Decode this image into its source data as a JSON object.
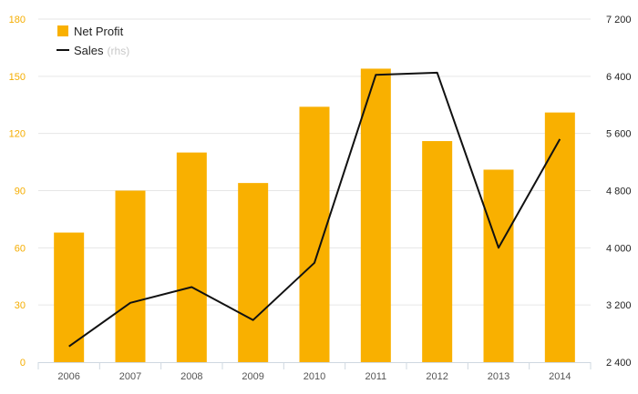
{
  "chart_data": {
    "type": "bar",
    "categories": [
      "2006",
      "2007",
      "2008",
      "2009",
      "2010",
      "2011",
      "2012",
      "2013",
      "2014"
    ],
    "series": [
      {
        "name": "Net Profit",
        "type": "bar",
        "axis": "left",
        "color": "#f9b000",
        "values": [
          68,
          90,
          110,
          94,
          134,
          154,
          116,
          101,
          131
        ]
      },
      {
        "name": "Sales",
        "type": "line",
        "axis": "right",
        "color": "#111111",
        "values": [
          2620,
          3230,
          3450,
          2990,
          3790,
          6420,
          6450,
          4000,
          5520
        ]
      }
    ],
    "y_left": {
      "ylim": [
        0,
        180
      ],
      "ticks": [
        0,
        30,
        60,
        90,
        120,
        150,
        180
      ],
      "tick_labels": [
        "0",
        "30",
        "60",
        "90",
        "120",
        "150",
        "180"
      ],
      "color": "#f5ad00"
    },
    "y_right": {
      "ylim": [
        2400,
        7200
      ],
      "ticks": [
        2400,
        3200,
        4000,
        4800,
        5600,
        6400,
        7200
      ],
      "tick_labels": [
        "2 400",
        "3 200",
        "4 000",
        "4 800",
        "5 600",
        "6 400",
        "7 200"
      ]
    },
    "legend": {
      "placement": "top-left",
      "items": [
        {
          "label": "Net Profit",
          "sub": ""
        },
        {
          "label": "Sales",
          "sub": "(rhs)"
        }
      ]
    },
    "grid": true,
    "title": "",
    "xlabel": "",
    "ylabel": ""
  }
}
